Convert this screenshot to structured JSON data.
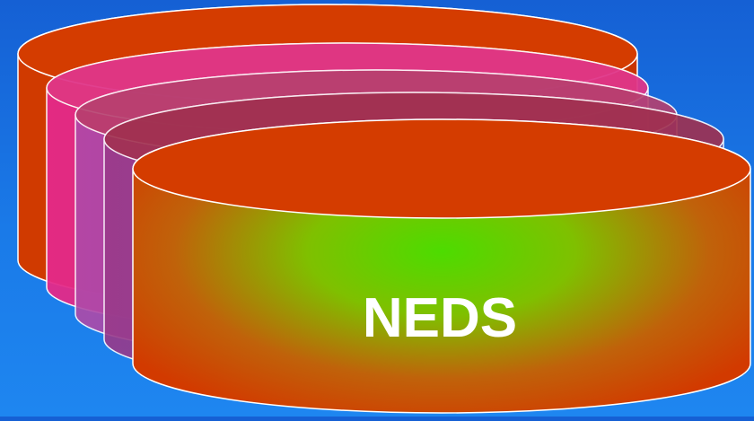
{
  "diagram": {
    "front_cylinder_label": "NEDS",
    "colors": {
      "background_top": "#1560d4",
      "background_bottom": "#1e86f0",
      "front_center": "#4ddc00",
      "front_edge": "#d23a00",
      "back_cylinder": "#cf3c00",
      "pink_cylinder": "#e0287a",
      "violet_cylinder": "#9a3cc0",
      "outline": "#ffffff"
    },
    "cylinders": [
      {
        "name": "cylinder-back",
        "color": "#cf3c00"
      },
      {
        "name": "cylinder-pink",
        "color": "#e0287a"
      },
      {
        "name": "cylinder-violet",
        "color": "#9a3cc0"
      },
      {
        "name": "cylinder-purple",
        "color": "#7a3a9a"
      },
      {
        "name": "cylinder-front",
        "color": "#d23a00"
      }
    ]
  }
}
